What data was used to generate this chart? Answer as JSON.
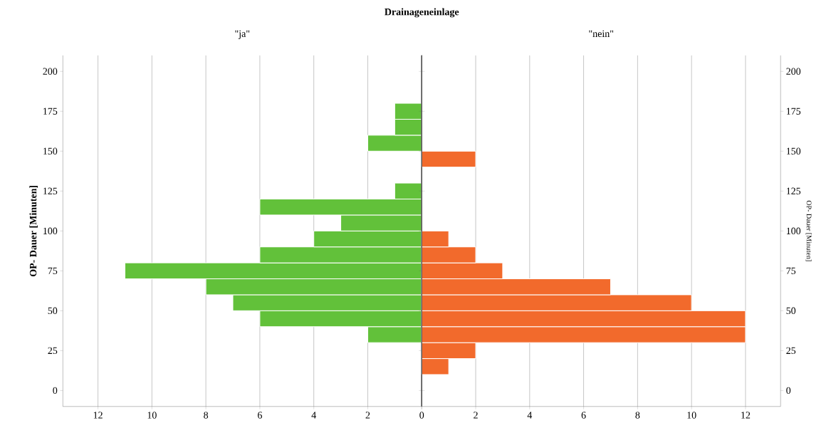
{
  "chart_data": [
    {
      "type": "histogram",
      "orientation": "horizontal",
      "title": "\"ja\"",
      "ylabel": "OP- Dauer [Minuten]",
      "annotations": [
        "Drainageneinlage"
      ],
      "bins": [
        10,
        20,
        30,
        40,
        50,
        60,
        70,
        80,
        90,
        100,
        110,
        120,
        130,
        140,
        150,
        160,
        170,
        180
      ],
      "values": [
        0,
        0,
        2,
        6,
        7,
        8,
        11,
        6,
        4,
        3,
        6,
        1,
        0,
        0,
        2,
        1,
        1
      ],
      "color": "#62c13a",
      "xlim": [
        13.3,
        0
      ],
      "xticks": [
        12,
        10,
        8,
        6,
        4,
        2,
        0
      ],
      "ylim": [
        -10,
        210
      ],
      "yticks": [
        0,
        25,
        50,
        75,
        100,
        125,
        150,
        175,
        200
      ],
      "grid": "x"
    },
    {
      "type": "histogram",
      "orientation": "horizontal",
      "title": "\"nein\"",
      "ylabel": "OP- Dauer [Minuten]",
      "bins": [
        10,
        20,
        30,
        40,
        50,
        60,
        70,
        80,
        90,
        100,
        110,
        120,
        130,
        140,
        150,
        160,
        170,
        180
      ],
      "values": [
        1,
        2,
        12,
        12,
        10,
        7,
        3,
        2,
        1,
        0,
        0,
        0,
        0,
        2,
        0,
        0,
        0
      ],
      "color": "#f26a2c",
      "xlim": [
        0,
        13.3
      ],
      "xticks": [
        {
          "value": 0,
          "label": null
        },
        2,
        4,
        6,
        8,
        10,
        12
      ],
      "ylim": [
        -10,
        210
      ],
      "yticks": [
        0,
        25,
        50,
        75,
        100,
        125,
        150,
        175,
        200
      ],
      "grid": "x"
    }
  ]
}
